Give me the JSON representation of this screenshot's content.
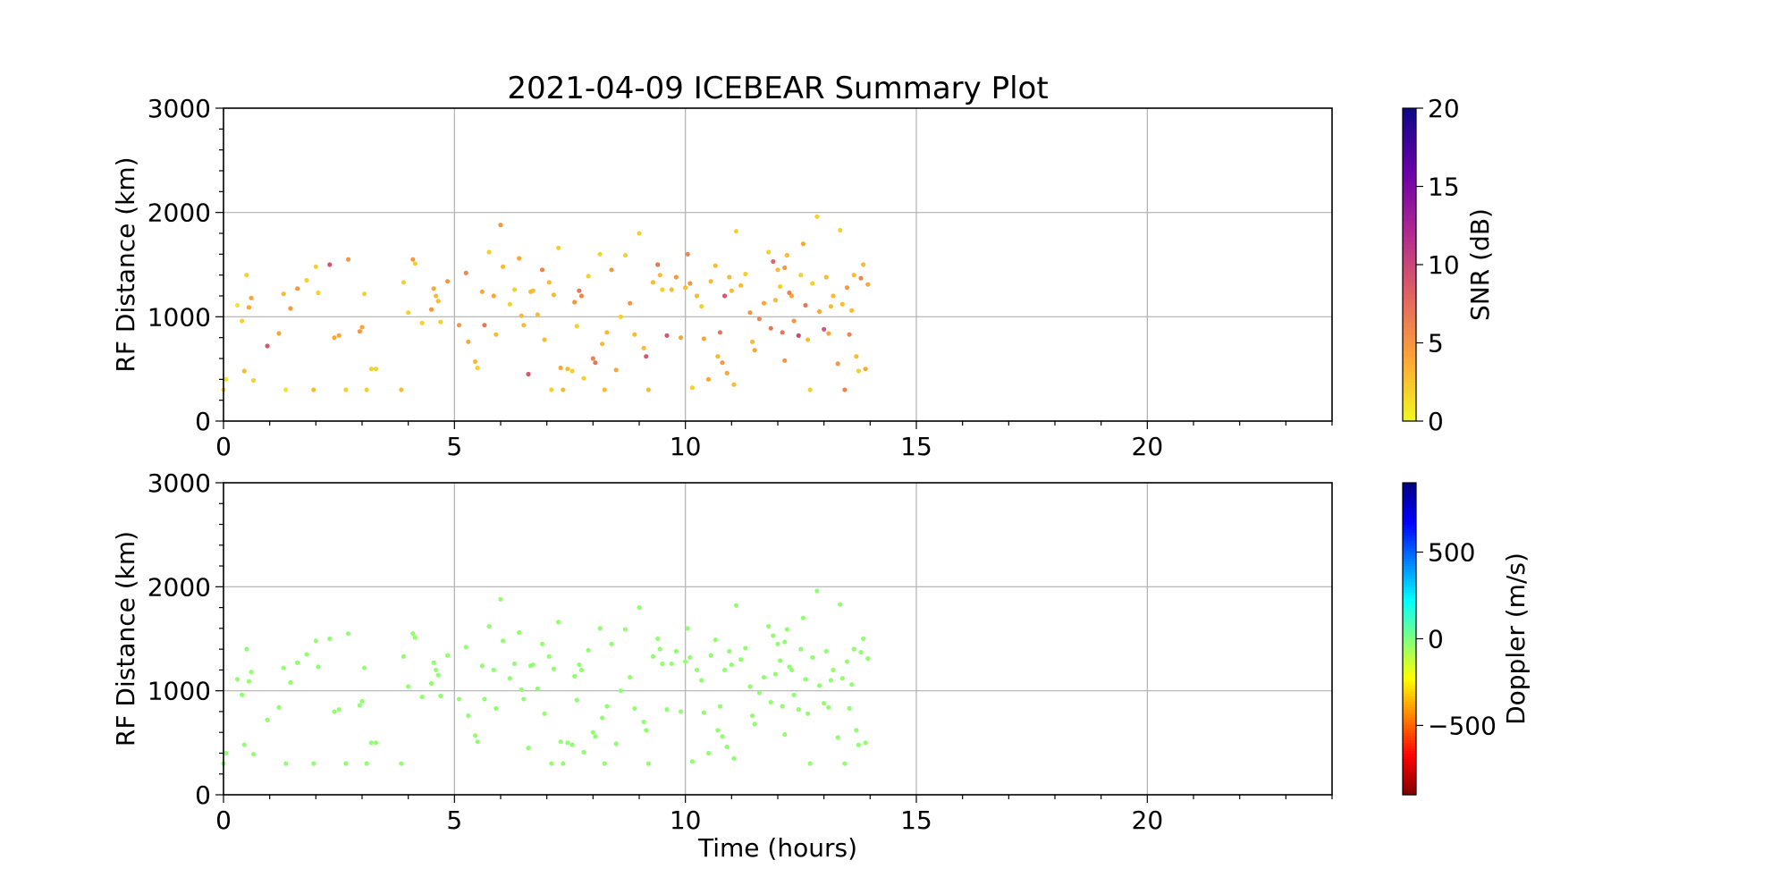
{
  "chart_data": [
    {
      "type": "scatter",
      "title": "2021-04-09 ICEBEAR Summary Plot",
      "xlabel": "",
      "ylabel": "RF Distance (km)",
      "xlim": [
        0,
        24
      ],
      "ylim": [
        0,
        3000
      ],
      "xticks": [
        "0",
        "5",
        "10",
        "15",
        "20"
      ],
      "yticks": [
        "0",
        "1000",
        "2000",
        "3000"
      ],
      "grid": true,
      "color_by": "snr",
      "colorbar": {
        "label": "SNR (dB)",
        "colormap": "plasma_r",
        "range": [
          0,
          20
        ],
        "ticks": [
          "0",
          "5",
          "10",
          "15",
          "20"
        ]
      }
    },
    {
      "type": "scatter",
      "xlabel": "Time (hours)",
      "ylabel": "RF Distance (km)",
      "xlim": [
        0,
        24
      ],
      "ylim": [
        0,
        3000
      ],
      "xticks": [
        "0",
        "5",
        "10",
        "15",
        "20"
      ],
      "yticks": [
        "0",
        "1000",
        "2000",
        "3000"
      ],
      "grid": true,
      "color_by": "doppler",
      "doppler_mps": -30,
      "colorbar": {
        "label": "Doppler (m/s)",
        "colormap": "jet",
        "range": [
          -900,
          900
        ],
        "ticks": [
          "−500",
          "0",
          "500"
        ],
        "tick_values": [
          -500,
          0,
          500
        ]
      }
    }
  ],
  "points_columns": [
    "time_hours",
    "rf_distance_km",
    "snr_db"
  ],
  "points": [
    [
      0.0,
      300,
      2
    ],
    [
      0.05,
      400,
      1
    ],
    [
      0.3,
      1110,
      1
    ],
    [
      0.4,
      960,
      2
    ],
    [
      0.45,
      480,
      3
    ],
    [
      0.5,
      1400,
      2
    ],
    [
      0.55,
      1090,
      4
    ],
    [
      0.6,
      1180,
      4
    ],
    [
      0.65,
      390,
      2
    ],
    [
      0.95,
      720,
      9
    ],
    [
      1.2,
      840,
      4
    ],
    [
      1.3,
      1220,
      3
    ],
    [
      1.35,
      300,
      1
    ],
    [
      1.45,
      1080,
      5
    ],
    [
      1.6,
      1270,
      5
    ],
    [
      1.8,
      1350,
      2
    ],
    [
      1.95,
      300,
      3
    ],
    [
      2.0,
      1480,
      2
    ],
    [
      2.05,
      1230,
      2
    ],
    [
      2.3,
      1500,
      9
    ],
    [
      2.4,
      800,
      4
    ],
    [
      2.5,
      820,
      4
    ],
    [
      2.65,
      300,
      2
    ],
    [
      2.7,
      1550,
      5
    ],
    [
      2.95,
      860,
      5
    ],
    [
      3.0,
      900,
      4
    ],
    [
      3.05,
      1220,
      2
    ],
    [
      3.1,
      300,
      2
    ],
    [
      3.2,
      500,
      2
    ],
    [
      3.3,
      500,
      2
    ],
    [
      3.85,
      300,
      3
    ],
    [
      3.9,
      1330,
      2
    ],
    [
      4.0,
      1040,
      2
    ],
    [
      4.1,
      1550,
      5
    ],
    [
      4.15,
      1510,
      2
    ],
    [
      4.3,
      940,
      2
    ],
    [
      4.5,
      1070,
      5
    ],
    [
      4.55,
      1270,
      4
    ],
    [
      4.6,
      1200,
      3
    ],
    [
      4.65,
      1150,
      3
    ],
    [
      4.7,
      950,
      2
    ],
    [
      4.85,
      1340,
      5
    ],
    [
      5.1,
      920,
      5
    ],
    [
      5.25,
      1420,
      6
    ],
    [
      5.3,
      760,
      4
    ],
    [
      5.45,
      570,
      3
    ],
    [
      5.5,
      510,
      2
    ],
    [
      5.6,
      1240,
      4
    ],
    [
      5.65,
      920,
      7
    ],
    [
      5.75,
      1620,
      2
    ],
    [
      5.85,
      1200,
      4
    ],
    [
      5.9,
      830,
      3
    ],
    [
      6.0,
      1880,
      5
    ],
    [
      6.05,
      1480,
      3
    ],
    [
      6.2,
      1120,
      2
    ],
    [
      6.3,
      1260,
      2
    ],
    [
      6.4,
      1560,
      4
    ],
    [
      6.45,
      1010,
      3
    ],
    [
      6.5,
      920,
      3
    ],
    [
      6.6,
      450,
      9
    ],
    [
      6.65,
      1240,
      3
    ],
    [
      6.7,
      1250,
      3
    ],
    [
      6.8,
      1020,
      3
    ],
    [
      6.9,
      1450,
      6
    ],
    [
      6.95,
      780,
      3
    ],
    [
      7.05,
      1330,
      3
    ],
    [
      7.1,
      300,
      2
    ],
    [
      7.15,
      1210,
      3
    ],
    [
      7.25,
      1660,
      2
    ],
    [
      7.3,
      510,
      4
    ],
    [
      7.35,
      300,
      3
    ],
    [
      7.45,
      500,
      3
    ],
    [
      7.55,
      480,
      2
    ],
    [
      7.6,
      1140,
      5
    ],
    [
      7.65,
      910,
      2
    ],
    [
      7.7,
      1250,
      7
    ],
    [
      7.75,
      1200,
      6
    ],
    [
      7.8,
      410,
      2
    ],
    [
      7.9,
      1390,
      2
    ],
    [
      8.0,
      600,
      6
    ],
    [
      8.05,
      560,
      7
    ],
    [
      8.15,
      1600,
      2
    ],
    [
      8.2,
      740,
      3
    ],
    [
      8.25,
      300,
      3
    ],
    [
      8.3,
      850,
      3
    ],
    [
      8.4,
      1450,
      5
    ],
    [
      8.5,
      490,
      4
    ],
    [
      8.6,
      1000,
      2
    ],
    [
      8.7,
      1590,
      2
    ],
    [
      8.8,
      1130,
      5
    ],
    [
      8.9,
      830,
      3
    ],
    [
      9.0,
      1800,
      2
    ],
    [
      9.1,
      700,
      3
    ],
    [
      9.15,
      620,
      9
    ],
    [
      9.2,
      300,
      3
    ],
    [
      9.3,
      1330,
      3
    ],
    [
      9.4,
      1500,
      7
    ],
    [
      9.5,
      1260,
      2
    ],
    [
      9.6,
      820,
      9
    ],
    [
      9.7,
      1260,
      3
    ],
    [
      9.8,
      1380,
      5
    ],
    [
      9.9,
      800,
      4
    ],
    [
      10.0,
      1280,
      3
    ],
    [
      10.05,
      1600,
      6
    ],
    [
      10.1,
      1320,
      5
    ],
    [
      10.15,
      320,
      2
    ],
    [
      10.25,
      1200,
      3
    ],
    [
      10.35,
      1100,
      2
    ],
    [
      10.4,
      790,
      4
    ],
    [
      10.5,
      400,
      4
    ],
    [
      10.55,
      1340,
      3
    ],
    [
      10.65,
      1490,
      3
    ],
    [
      10.7,
      620,
      3
    ],
    [
      10.75,
      850,
      7
    ],
    [
      10.8,
      560,
      5
    ],
    [
      10.85,
      1200,
      9
    ],
    [
      10.9,
      460,
      4
    ],
    [
      11.0,
      1250,
      3
    ],
    [
      11.05,
      350,
      3
    ],
    [
      11.1,
      1820,
      2
    ],
    [
      11.2,
      1300,
      3
    ],
    [
      11.3,
      1410,
      2
    ],
    [
      11.4,
      1040,
      5
    ],
    [
      11.5,
      680,
      4
    ],
    [
      11.6,
      980,
      6
    ],
    [
      11.7,
      1130,
      4
    ],
    [
      11.8,
      1620,
      2
    ],
    [
      11.85,
      890,
      7
    ],
    [
      11.9,
      1530,
      8
    ],
    [
      12.0,
      1450,
      3
    ],
    [
      12.05,
      1290,
      2
    ],
    [
      12.1,
      850,
      7
    ],
    [
      12.15,
      580,
      5
    ],
    [
      12.2,
      1590,
      3
    ],
    [
      12.3,
      1200,
      4
    ],
    [
      12.35,
      960,
      5
    ],
    [
      12.45,
      820,
      10
    ],
    [
      12.5,
      1400,
      2
    ],
    [
      12.55,
      1700,
      4
    ],
    [
      12.6,
      1110,
      7
    ],
    [
      12.7,
      300,
      2
    ],
    [
      12.75,
      1320,
      2
    ],
    [
      12.85,
      1960,
      2
    ],
    [
      12.9,
      1050,
      4
    ],
    [
      13.0,
      880,
      9
    ],
    [
      13.05,
      1380,
      3
    ],
    [
      13.1,
      840,
      4
    ],
    [
      13.2,
      1200,
      3
    ],
    [
      13.3,
      550,
      5
    ],
    [
      13.35,
      1830,
      2
    ],
    [
      13.4,
      1120,
      3
    ],
    [
      13.45,
      300,
      6
    ],
    [
      13.5,
      1280,
      5
    ],
    [
      13.55,
      830,
      6
    ],
    [
      13.6,
      1060,
      3
    ],
    [
      13.65,
      1400,
      3
    ],
    [
      13.7,
      620,
      3
    ],
    [
      13.75,
      480,
      2
    ],
    [
      13.8,
      1370,
      6
    ],
    [
      13.85,
      1500,
      3
    ],
    [
      13.9,
      500,
      4
    ],
    [
      13.95,
      1310,
      4
    ],
    [
      11.95,
      1160,
      3
    ],
    [
      12.25,
      1230,
      6
    ],
    [
      12.65,
      780,
      3
    ],
    [
      10.95,
      1380,
      3
    ],
    [
      9.45,
      1400,
      3
    ],
    [
      12.15,
      1470,
      5
    ],
    [
      13.15,
      1100,
      3
    ],
    [
      11.45,
      760,
      3
    ]
  ]
}
